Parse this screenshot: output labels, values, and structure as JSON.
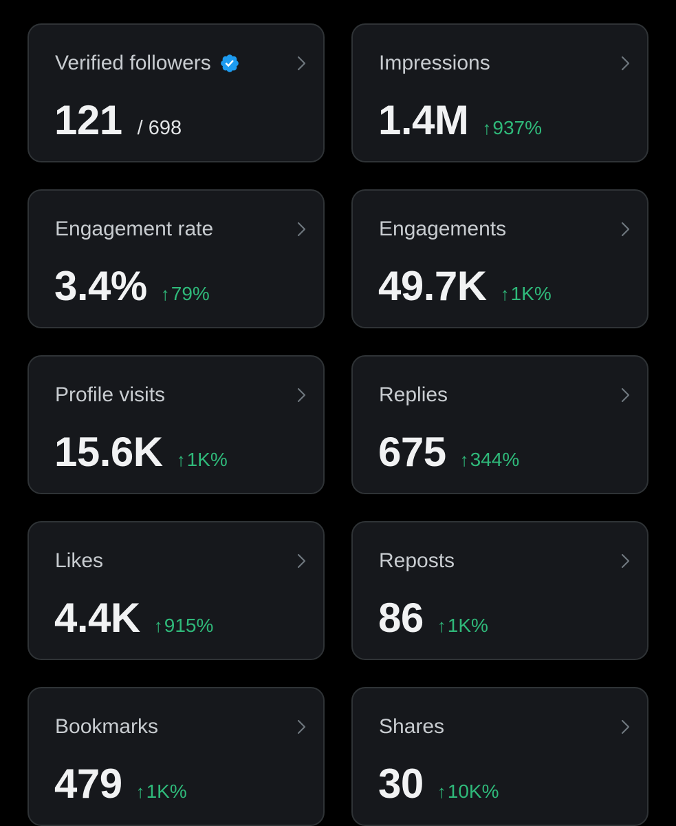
{
  "colors": {
    "background": "#000000",
    "card_background": "#16181c",
    "card_border": "#2f3336",
    "label_text": "#c8ccd0",
    "value_text": "#f1f2f3",
    "positive_delta": "#2fb97a",
    "verified_badge": "#1d9bf0"
  },
  "icons": {
    "verified": "verified-badge-icon",
    "chevron": "chevron-right-icon",
    "delta_arrow": "arrow-up-icon"
  },
  "delta_arrow": "↑",
  "cards": [
    {
      "label": "Verified followers",
      "value": "121",
      "total": "/ 698",
      "verified": true
    },
    {
      "label": "Impressions",
      "value": "1.4M",
      "delta": "937%"
    },
    {
      "label": "Engagement rate",
      "value": "3.4%",
      "delta": "79%"
    },
    {
      "label": "Engagements",
      "value": "49.7K",
      "delta": "1K%"
    },
    {
      "label": "Profile visits",
      "value": "15.6K",
      "delta": "1K%"
    },
    {
      "label": "Replies",
      "value": "675",
      "delta": "344%"
    },
    {
      "label": "Likes",
      "value": "4.4K",
      "delta": "915%"
    },
    {
      "label": "Reposts",
      "value": "86",
      "delta": "1K%"
    },
    {
      "label": "Bookmarks",
      "value": "479",
      "delta": "1K%"
    },
    {
      "label": "Shares",
      "value": "30",
      "delta": "10K%"
    }
  ]
}
